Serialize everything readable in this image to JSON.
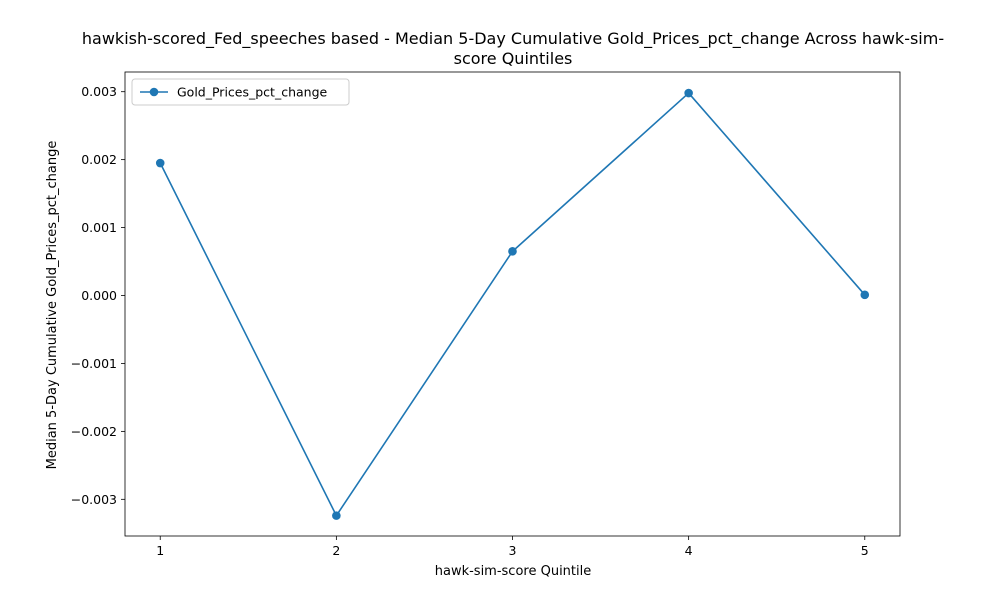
{
  "chart_data": {
    "type": "line",
    "title_lines": [
      "hawkish-scored_Fed_speeches based - Median 5-Day Cumulative Gold_Prices_pct_change Across hawk-sim-",
      "score Quintiles"
    ],
    "xlabel": "hawk-sim-score Quintile",
    "ylabel": "Median 5-Day Cumulative Gold_Prices_pct_change",
    "x": [
      1,
      2,
      3,
      4,
      5
    ],
    "x_tick_labels": [
      "1",
      "2",
      "3",
      "4",
      "5"
    ],
    "xlim": [
      0.8,
      5.2
    ],
    "ylim": [
      -0.00354,
      0.00329
    ],
    "y_ticks": [
      -0.003,
      -0.002,
      -0.001,
      0.0,
      0.001,
      0.002,
      0.003
    ],
    "y_tick_labels": [
      "−0.003",
      "−0.002",
      "−0.001",
      "0.000",
      "0.001",
      "0.002",
      "0.003"
    ],
    "series": [
      {
        "name": "Gold_Prices_pct_change",
        "values": [
          0.00195,
          -0.00324,
          0.00065,
          0.00298,
          1e-05
        ],
        "color": "#1f77b4",
        "marker": "circle"
      }
    ],
    "legend_position": "upper-left",
    "grid": false
  }
}
